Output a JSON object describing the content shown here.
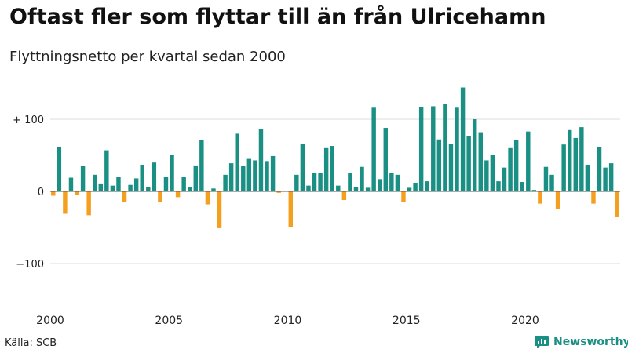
{
  "title": "Oftast fler som flyttar till än från Ulricehamn",
  "subtitle": "Flyttningsnetto per kvartal sedan 2000",
  "source": "Källa: SCB",
  "brand": {
    "name": "Newsworthy",
    "icon": "newsworthy-logo-icon",
    "color": "#1a9085"
  },
  "colors": {
    "positive": "#1a9085",
    "negative": "#f59f1e",
    "grid": "#dddddd",
    "zero_line": "#555555"
  },
  "chart_data": {
    "type": "bar",
    "title": "Oftast fler som flyttar till än från Ulricehamn",
    "subtitle": "Flyttningsnetto per kvartal sedan 2000",
    "xlabel": "",
    "ylabel": "",
    "ylim": [
      -160,
      160
    ],
    "yticks": [
      {
        "value": 100,
        "label": "+ 100"
      },
      {
        "value": 0,
        "label": "0"
      },
      {
        "value": -100,
        "label": "−100"
      }
    ],
    "xticks": [
      {
        "index": 0,
        "label": "2000"
      },
      {
        "index": 20,
        "label": "2005"
      },
      {
        "index": 40,
        "label": "2010"
      },
      {
        "index": 60,
        "label": "2015"
      },
      {
        "index": 80,
        "label": "2020"
      }
    ],
    "grid": true,
    "categories": [
      "2000 Q1",
      "2000 Q2",
      "2000 Q3",
      "2000 Q4",
      "2001 Q1",
      "2001 Q2",
      "2001 Q3",
      "2001 Q4",
      "2002 Q1",
      "2002 Q2",
      "2002 Q3",
      "2002 Q4",
      "2003 Q1",
      "2003 Q2",
      "2003 Q3",
      "2003 Q4",
      "2004 Q1",
      "2004 Q2",
      "2004 Q3",
      "2004 Q4",
      "2005 Q1",
      "2005 Q2",
      "2005 Q3",
      "2005 Q4",
      "2006 Q1",
      "2006 Q2",
      "2006 Q3",
      "2006 Q4",
      "2007 Q1",
      "2007 Q2",
      "2007 Q3",
      "2007 Q4",
      "2008 Q1",
      "2008 Q2",
      "2008 Q3",
      "2008 Q4",
      "2009 Q1",
      "2009 Q2",
      "2009 Q3",
      "2009 Q4",
      "2010 Q1",
      "2010 Q2",
      "2010 Q3",
      "2010 Q4",
      "2011 Q1",
      "2011 Q2",
      "2011 Q3",
      "2011 Q4",
      "2012 Q1",
      "2012 Q2",
      "2012 Q3",
      "2012 Q4",
      "2013 Q1",
      "2013 Q2",
      "2013 Q3",
      "2013 Q4",
      "2014 Q1",
      "2014 Q2",
      "2014 Q3",
      "2014 Q4",
      "2015 Q1",
      "2015 Q2",
      "2015 Q3",
      "2015 Q4",
      "2016 Q1",
      "2016 Q2",
      "2016 Q3",
      "2016 Q4",
      "2017 Q1",
      "2017 Q2",
      "2017 Q3",
      "2017 Q4",
      "2018 Q1",
      "2018 Q2",
      "2018 Q3",
      "2018 Q4",
      "2019 Q1",
      "2019 Q2",
      "2019 Q3",
      "2019 Q4",
      "2020 Q1",
      "2020 Q2",
      "2020 Q3",
      "2020 Q4",
      "2021 Q1",
      "2021 Q2",
      "2021 Q3",
      "2021 Q4",
      "2022 Q1",
      "2022 Q2",
      "2022 Q3",
      "2022 Q4",
      "2023 Q1",
      "2023 Q2",
      "2023 Q3",
      "2023 Q4"
    ],
    "values": [
      -6,
      62,
      -31,
      19,
      -5,
      35,
      -33,
      23,
      11,
      57,
      8,
      20,
      -15,
      9,
      18,
      37,
      6,
      40,
      -15,
      20,
      50,
      -8,
      20,
      6,
      36,
      71,
      -18,
      4,
      -51,
      23,
      39,
      80,
      35,
      45,
      43,
      86,
      42,
      49,
      -2,
      0,
      -49,
      23,
      66,
      8,
      25,
      25,
      60,
      63,
      8,
      -12,
      26,
      6,
      34,
      5,
      116,
      17,
      88,
      25,
      23,
      -15,
      5,
      12,
      117,
      14,
      118,
      72,
      121,
      66,
      116,
      144,
      77,
      100,
      82,
      43,
      50,
      14,
      33,
      60,
      71,
      13,
      83,
      2,
      -17,
      34,
      23,
      -25,
      65,
      85,
      74,
      89,
      37,
      -17,
      62,
      33,
      39,
      -35
    ]
  }
}
